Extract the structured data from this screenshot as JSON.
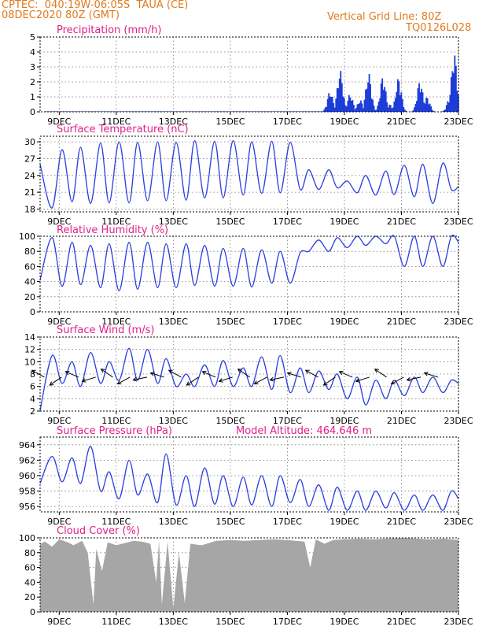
{
  "header": {
    "station": "CPTEC:  040:19W-06:05S  TAUA (CE)",
    "run": "08DEC2020 80Z (GMT)",
    "grid_note": "Vertical Grid Line: 80Z",
    "model": "TQ0126L028"
  },
  "colors": {
    "header": "#e07a1f",
    "title": "#e0208a",
    "line": "#2b3fe0",
    "bar": "#1c3cd8",
    "cloud": "#a6a6a6",
    "grid": "#7a7a7a"
  },
  "x_ticks": [
    "9DEC",
    "11DEC",
    "13DEC",
    "15DEC",
    "17DEC",
    "19DEC",
    "21DEC",
    "23DEC"
  ],
  "chart_data": [
    {
      "id": "precipitation",
      "type": "bar",
      "title": "Precipitation (mm/h)",
      "ylim": [
        0,
        5
      ],
      "yticks": [
        0,
        1,
        2,
        3,
        4,
        5
      ],
      "x_unit": "day of December 2020",
      "xlim": [
        8.33,
        23.0
      ],
      "bursts": [
        {
          "day": 18.5,
          "peak": 1.4
        },
        {
          "day": 18.85,
          "peak": 2.8
        },
        {
          "day": 19.2,
          "peak": 1.2
        },
        {
          "day": 19.55,
          "peak": 0.8
        },
        {
          "day": 19.85,
          "peak": 2.6
        },
        {
          "day": 20.35,
          "peak": 2.4
        },
        {
          "day": 20.6,
          "peak": 0.5
        },
        {
          "day": 20.9,
          "peak": 2.3
        },
        {
          "day": 21.65,
          "peak": 2.1
        },
        {
          "day": 21.9,
          "peak": 1.0
        },
        {
          "day": 22.85,
          "peak": 4.0
        },
        {
          "day": 22.7,
          "peak": 1.0
        }
      ]
    },
    {
      "id": "temperature",
      "type": "line",
      "title": "Surface Temperature (nC)",
      "ylim": [
        17.5,
        31
      ],
      "yticks": [
        18,
        21,
        24,
        27,
        30
      ],
      "x": [
        8.33,
        8.75,
        9.1,
        9.45,
        9.75,
        10.1,
        10.45,
        10.75,
        11.1,
        11.45,
        11.75,
        12.1,
        12.45,
        12.75,
        13.1,
        13.45,
        13.75,
        14.1,
        14.45,
        14.75,
        15.1,
        15.45,
        15.75,
        16.1,
        16.45,
        16.75,
        17.1,
        17.45,
        17.75,
        18.1,
        18.45,
        18.75,
        19.1,
        19.45,
        19.75,
        20.1,
        20.45,
        20.75,
        21.1,
        21.45,
        21.75,
        22.1,
        22.45,
        22.75,
        23.0
      ],
      "y": [
        26,
        18.2,
        28.6,
        19.3,
        29.0,
        19.0,
        29.8,
        19.1,
        30.0,
        19.1,
        29.9,
        19.5,
        30.0,
        19.5,
        29.9,
        19.6,
        30.2,
        20.0,
        30.1,
        20.0,
        30.2,
        20.5,
        30.0,
        20.8,
        30.1,
        20.9,
        29.9,
        21.5,
        25.0,
        21.5,
        25.0,
        21.8,
        23.0,
        20.9,
        24.0,
        20.5,
        24.8,
        20.6,
        25.8,
        20.2,
        26.0,
        19.0,
        26.2,
        21.5,
        22.0
      ]
    },
    {
      "id": "humidity",
      "type": "line",
      "title": "Relative Humidity (%)",
      "ylim": [
        0,
        100
      ],
      "yticks": [
        0,
        20,
        40,
        60,
        80,
        100
      ],
      "x": [
        8.33,
        8.75,
        9.1,
        9.45,
        9.75,
        10.1,
        10.45,
        10.75,
        11.1,
        11.45,
        11.75,
        12.1,
        12.45,
        12.75,
        13.1,
        13.45,
        13.75,
        14.1,
        14.45,
        14.75,
        15.1,
        15.45,
        15.75,
        16.1,
        16.45,
        16.75,
        17.1,
        17.45,
        17.75,
        18.1,
        18.45,
        18.75,
        19.1,
        19.45,
        19.75,
        20.1,
        20.45,
        20.75,
        21.1,
        21.45,
        21.75,
        22.1,
        22.45,
        22.75,
        23.0
      ],
      "y": [
        42,
        98,
        34,
        92,
        36,
        88,
        32,
        90,
        28,
        92,
        30,
        92,
        32,
        90,
        32,
        90,
        35,
        88,
        34,
        84,
        34,
        84,
        33,
        82,
        38,
        80,
        38,
        78,
        80,
        95,
        80,
        98,
        85,
        100,
        88,
        100,
        90,
        100,
        60,
        100,
        60,
        100,
        60,
        100,
        92
      ]
    },
    {
      "id": "wind",
      "type": "line",
      "title": "Surface Wind (m/s)",
      "ylim": [
        2,
        14
      ],
      "yticks": [
        2,
        4,
        6,
        8,
        10,
        12,
        14
      ],
      "x": [
        8.33,
        8.75,
        9.1,
        9.45,
        9.75,
        10.1,
        10.45,
        10.75,
        11.1,
        11.45,
        11.75,
        12.1,
        12.45,
        12.75,
        13.1,
        13.45,
        13.75,
        14.1,
        14.45,
        14.75,
        15.1,
        15.45,
        15.75,
        16.1,
        16.45,
        16.75,
        17.1,
        17.45,
        17.75,
        18.1,
        18.45,
        18.75,
        19.1,
        19.45,
        19.75,
        20.1,
        20.45,
        20.75,
        21.1,
        21.45,
        21.75,
        22.1,
        22.45,
        22.75,
        23.0
      ],
      "y": [
        2.1,
        11.0,
        6.5,
        10.0,
        6.0,
        11.5,
        6.5,
        10.0,
        7.0,
        12.2,
        7.0,
        12.0,
        6.5,
        10.5,
        6.0,
        8.0,
        6.0,
        9.5,
        6.0,
        10.2,
        6.0,
        9.0,
        6.0,
        10.8,
        5.5,
        11.0,
        5.0,
        9.0,
        5.0,
        8.5,
        5.5,
        8.0,
        4.0,
        7.5,
        3.0,
        7.0,
        4.0,
        7.0,
        4.5,
        7.5,
        5.0,
        7.5,
        5.0,
        7.0,
        6.5
      ]
    },
    {
      "id": "pressure",
      "type": "line",
      "title": "Surface Pressure (hPa)",
      "annotation": "Model Altitude: 464.646 m",
      "ylim": [
        955.3,
        965
      ],
      "yticks": [
        956,
        958,
        960,
        962,
        964
      ],
      "x": [
        8.33,
        8.75,
        9.1,
        9.45,
        9.75,
        10.1,
        10.45,
        10.75,
        11.1,
        11.45,
        11.75,
        12.1,
        12.45,
        12.75,
        13.1,
        13.45,
        13.75,
        14.1,
        14.45,
        14.75,
        15.1,
        15.45,
        15.75,
        16.1,
        16.45,
        16.75,
        17.1,
        17.45,
        17.75,
        18.1,
        18.45,
        18.75,
        19.1,
        19.45,
        19.75,
        20.1,
        20.45,
        20.75,
        21.1,
        21.45,
        21.75,
        22.1,
        22.45,
        22.75,
        23.0
      ],
      "y": [
        959.0,
        962.5,
        959.2,
        962.3,
        959.0,
        963.8,
        958.0,
        960.5,
        957.0,
        962.0,
        957.5,
        960.2,
        956.5,
        962.8,
        956.2,
        960.0,
        956.0,
        961.0,
        956.3,
        960.0,
        956.0,
        959.8,
        956.2,
        960.0,
        956.0,
        960.0,
        956.5,
        959.5,
        956.0,
        958.8,
        955.5,
        958.5,
        955.5,
        958.0,
        955.5,
        958.0,
        955.8,
        957.8,
        955.5,
        957.5,
        955.5,
        957.5,
        955.5,
        958.0,
        957.0
      ]
    },
    {
      "id": "cloud",
      "type": "area",
      "title": "Cloud Cover (%)",
      "ylim": [
        0,
        100
      ],
      "yticks": [
        0,
        20,
        40,
        60,
        80,
        100
      ],
      "x": [
        8.33,
        8.5,
        8.75,
        9.0,
        9.3,
        9.5,
        9.8,
        10.0,
        10.2,
        10.3,
        10.5,
        10.7,
        11.0,
        11.3,
        11.6,
        11.9,
        12.2,
        12.4,
        12.5,
        12.6,
        12.8,
        13.0,
        13.2,
        13.4,
        13.6,
        14.0,
        14.5,
        15.0,
        15.5,
        16.0,
        16.5,
        17.0,
        17.3,
        17.6,
        17.8,
        18.0,
        18.3,
        18.6,
        19.0,
        19.5,
        20.0,
        20.5,
        21.0,
        21.5,
        22.0,
        22.5,
        23.0
      ],
      "y": [
        92,
        95,
        88,
        98,
        94,
        90,
        96,
        80,
        10,
        85,
        55,
        94,
        90,
        93,
        96,
        95,
        92,
        40,
        96,
        10,
        95,
        5,
        80,
        12,
        92,
        90,
        96,
        97,
        96,
        97,
        98,
        97,
        96,
        95,
        60,
        98,
        92,
        97,
        98,
        99,
        98,
        99,
        100,
        99,
        98,
        99,
        97
      ]
    }
  ]
}
